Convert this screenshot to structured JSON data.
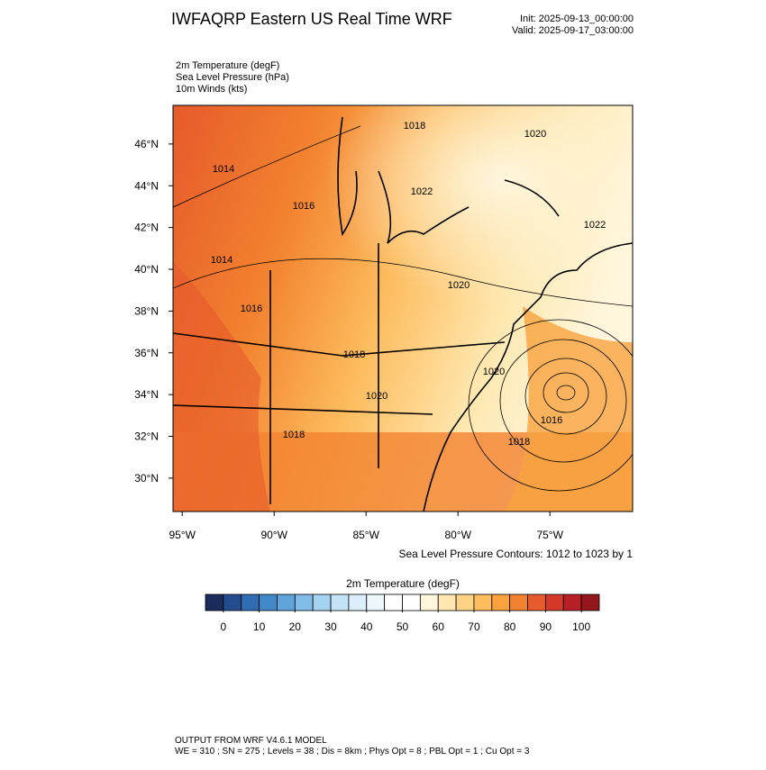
{
  "header": {
    "title": "IWFAQRP Eastern US Real Time WRF",
    "init": "Init: 2025-09-13_00:00:00",
    "valid": "Valid: 2025-09-17_03:00:00"
  },
  "fields": [
    "2m Temperature   (degF)",
    "Sea Level Pressure   (hPa)",
    "10m Winds   (kts)"
  ],
  "map": {
    "xlim": [
      -95.5,
      -70.5
    ],
    "ylim": [
      28.4,
      47.85
    ],
    "xticks": [
      {
        "value": -95,
        "label": "95°W"
      },
      {
        "value": -90,
        "label": "90°W"
      },
      {
        "value": -85,
        "label": "85°W"
      },
      {
        "value": -80,
        "label": "80°W"
      },
      {
        "value": -75,
        "label": "75°W"
      }
    ],
    "yticks": [
      {
        "value": 30,
        "label": "30°N"
      },
      {
        "value": 32,
        "label": "32°N"
      },
      {
        "value": 34,
        "label": "34°N"
      },
      {
        "value": 36,
        "label": "36°N"
      },
      {
        "value": 38,
        "label": "38°N"
      },
      {
        "value": 40,
        "label": "40°N"
      },
      {
        "value": 42,
        "label": "42°N"
      },
      {
        "value": 44,
        "label": "44°N"
      },
      {
        "value": 46,
        "label": "46°N"
      }
    ],
    "contour_labels": [
      1018,
      1020,
      1014,
      1022,
      1016,
      1022,
      1014,
      1020,
      1016,
      1018,
      1020,
      1020,
      1016,
      1018,
      1018
    ],
    "contour_note": "Sea Level Pressure Contours: 1012 to 1023 by 1"
  },
  "colorbar": {
    "title": "2m Temperature  (degF)",
    "xlim": [
      -5,
      105
    ],
    "xticks": [
      0,
      10,
      20,
      30,
      40,
      50,
      60,
      70,
      80,
      90,
      100
    ],
    "colors": [
      "#1b2b5b",
      "#234d8e",
      "#2f6cb3",
      "#4289c9",
      "#5fa4db",
      "#82bde8",
      "#a5d3f2",
      "#c3e3f7",
      "#dbeefa",
      "#eef7fc",
      "#ffffff",
      "#ffffff",
      "#fff6dc",
      "#fee8b0",
      "#fdd486",
      "#fdbc5e",
      "#f9a23e",
      "#f2822f",
      "#e65a2b",
      "#d43828",
      "#b71f24",
      "#94171c"
    ]
  },
  "footer": [
    "OUTPUT FROM WRF V4.6.1 MODEL",
    "WE = 310 ; SN = 275 ; Levels = 38 ; Dis = 8km ; Phys Opt = 8 ; PBL Opt = 1 ; Cu Opt = 3"
  ]
}
